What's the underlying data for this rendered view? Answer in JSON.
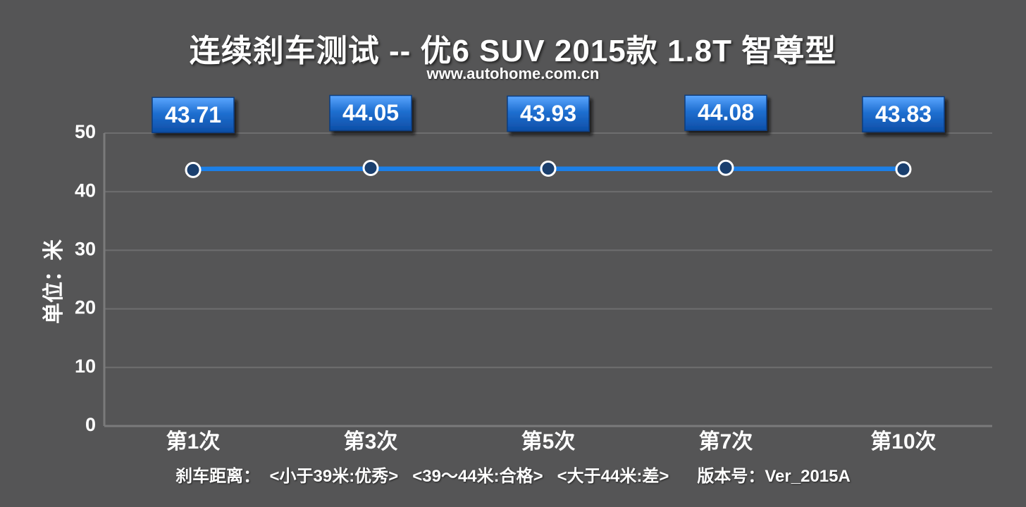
{
  "chart_data": {
    "type": "line",
    "title": "连续刹车测试 -- 优6 SUV 2015款 1.8T 智尊型",
    "subtitle": "www.autohome.com.cn",
    "ylabel": "单位：米",
    "xlabel": "",
    "categories": [
      "第1次",
      "第3次",
      "第5次",
      "第7次",
      "第10次"
    ],
    "series": [
      {
        "values": [
          43.71,
          44.05,
          43.93,
          44.08,
          43.83
        ]
      }
    ],
    "data_labels": [
      "43.71",
      "44.05",
      "43.93",
      "44.08",
      "43.83"
    ],
    "ylim": [
      0,
      50
    ],
    "yticks": [
      0,
      10,
      20,
      30,
      40,
      50
    ],
    "grid": true,
    "legend": "none",
    "colors": {
      "background": "#555556",
      "line": "#1e7fe6",
      "label_box": "#1f6fd0",
      "gridline": "#6e6e6f",
      "text": "#ffffff"
    }
  },
  "footer_note": "刹车距离：  <小于39米:优秀>   <39～44米:合格>   <大于44米:差>      版本号：Ver_2015A"
}
